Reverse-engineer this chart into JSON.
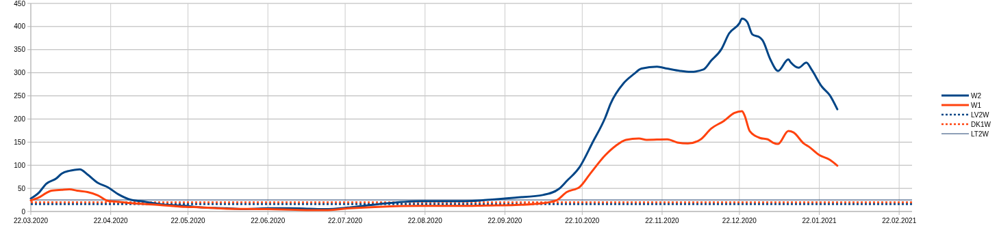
{
  "chart_data": {
    "type": "line",
    "x": [
      "2020-03-22",
      "2020-03-25",
      "2020-03-28",
      "2020-04-01",
      "2020-04-03",
      "2020-04-06",
      "2020-04-08",
      "2020-04-10",
      "2020-04-13",
      "2020-04-17",
      "2020-04-21",
      "2020-04-25",
      "2020-04-30",
      "2020-05-04",
      "2020-05-11",
      "2020-05-21",
      "2020-05-27",
      "2020-06-06",
      "2020-06-12",
      "2020-06-22",
      "2020-06-30",
      "2020-07-08",
      "2020-07-14",
      "2020-07-24",
      "2020-08-04",
      "2020-08-20",
      "2020-09-05",
      "2020-09-15",
      "2020-09-26",
      "2020-10-07",
      "2020-10-13",
      "2020-10-16",
      "2020-10-21",
      "2020-10-26",
      "2020-10-31",
      "2020-11-02",
      "2020-11-07",
      "2020-11-11",
      "2020-11-14",
      "2020-11-20",
      "2020-11-24",
      "2020-11-29",
      "2020-12-03",
      "2020-12-08",
      "2020-12-11",
      "2020-12-15",
      "2020-12-18",
      "2020-12-22",
      "2020-12-23",
      "2020-12-25",
      "2020-12-27",
      "2020-12-30",
      "2020-12-31",
      "2021-01-03",
      "2021-01-06",
      "2021-01-10",
      "2021-01-11",
      "2021-01-14",
      "2021-01-17",
      "2021-01-19",
      "2021-01-23",
      "2021-01-26",
      "2021-01-29"
    ],
    "series": [
      {
        "name": "W2",
        "color": "#004586",
        "values": [
          28,
          40,
          60,
          72,
          82,
          88,
          90,
          91,
          80,
          62,
          52,
          37,
          25,
          22,
          16,
          12,
          9,
          7,
          5,
          7,
          7,
          6,
          5,
          9,
          16,
          22,
          22,
          25,
          30,
          36,
          49,
          66,
          96,
          149,
          204,
          233,
          277,
          297,
          309,
          313,
          309,
          304,
          302,
          307,
          326,
          351,
          385,
          407,
          417,
          410,
          383,
          376,
          370,
          329,
          304,
          329,
          322,
          311,
          322,
          307,
          270,
          252,
          221
        ]
      },
      {
        "name": "W1",
        "color": "#ff420e",
        "x": [
          "2020-03-22",
          "2020-03-25",
          "2020-03-28",
          "2020-03-30",
          "2020-04-03",
          "2020-04-06",
          "2020-04-09",
          "2020-04-13",
          "2020-04-17",
          "2020-04-21",
          "2020-04-25",
          "2020-04-30",
          "2020-05-11",
          "2020-05-21",
          "2020-05-27",
          "2020-06-06",
          "2020-06-22",
          "2020-06-30",
          "2020-07-08",
          "2020-07-14",
          "2020-07-24",
          "2020-08-04",
          "2020-08-20",
          "2020-09-05",
          "2020-09-15",
          "2020-09-26",
          "2020-10-07",
          "2020-10-12",
          "2020-10-16",
          "2020-10-21",
          "2020-10-25",
          "2020-10-31",
          "2020-11-04",
          "2020-11-08",
          "2020-11-13",
          "2020-11-16",
          "2020-11-24",
          "2020-11-28",
          "2020-12-02",
          "2020-12-07",
          "2020-12-11",
          "2020-12-16",
          "2020-12-20",
          "2020-12-23",
          "2020-12-24",
          "2020-12-26",
          "2020-12-30",
          "2021-01-02",
          "2021-01-04",
          "2021-01-06",
          "2021-01-10",
          "2021-01-12",
          "2021-01-16",
          "2021-01-18",
          "2021-01-22",
          "2021-01-26",
          "2021-01-29"
        ],
        "values": [
          24,
          30,
          40,
          45,
          47,
          48,
          45,
          42,
          35,
          23,
          21,
          18,
          14,
          10,
          9,
          6,
          5,
          4,
          3,
          3,
          7,
          10,
          12,
          12,
          13,
          14,
          18,
          24,
          42,
          53,
          81,
          122,
          142,
          155,
          158,
          155,
          156,
          149,
          147,
          156,
          179,
          196,
          213,
          217,
          208,
          174,
          159,
          156,
          149,
          146,
          174,
          171,
          147,
          140,
          122,
          112,
          99
        ]
      }
    ],
    "ref_lines": [
      {
        "axis": "y",
        "value": 16,
        "label": "LV2W",
        "color": "#004586",
        "line_style": "dotted"
      },
      {
        "axis": "y",
        "value": 20,
        "label": "DK1W",
        "color": "#ff420e",
        "line_style": "dotted"
      },
      {
        "axis": "y",
        "value": 25,
        "label": "LT2W",
        "color": "#1c3f6e",
        "line_style": "solid"
      }
    ],
    "xlim": [
      "2020-03-22",
      "2021-02-27"
    ],
    "xticks": [
      {
        "value": "2020-03-22",
        "label": "22.03.2020"
      },
      {
        "value": "2020-04-22",
        "label": "22.04.2020"
      },
      {
        "value": "2020-05-22",
        "label": "22.05.2020"
      },
      {
        "value": "2020-06-22",
        "label": "22.06.2020"
      },
      {
        "value": "2020-07-22",
        "label": "22.07.2020"
      },
      {
        "value": "2020-08-22",
        "label": "22.08.2020"
      },
      {
        "value": "2020-09-22",
        "label": "22.09.2020"
      },
      {
        "value": "2020-10-22",
        "label": "22.10.2020"
      },
      {
        "value": "2020-11-22",
        "label": "22.11.2020"
      },
      {
        "value": "2020-12-22",
        "label": "22.12.2020"
      },
      {
        "value": "2021-01-22",
        "label": "22.01.2021"
      },
      {
        "value": "2021-02-22",
        "label": "22.02.2021"
      }
    ],
    "ylim": [
      0,
      450
    ],
    "yticks": [
      0,
      50,
      100,
      150,
      200,
      250,
      300,
      350,
      400,
      450
    ],
    "grid": true,
    "legend": "right",
    "line_style": "solid"
  }
}
